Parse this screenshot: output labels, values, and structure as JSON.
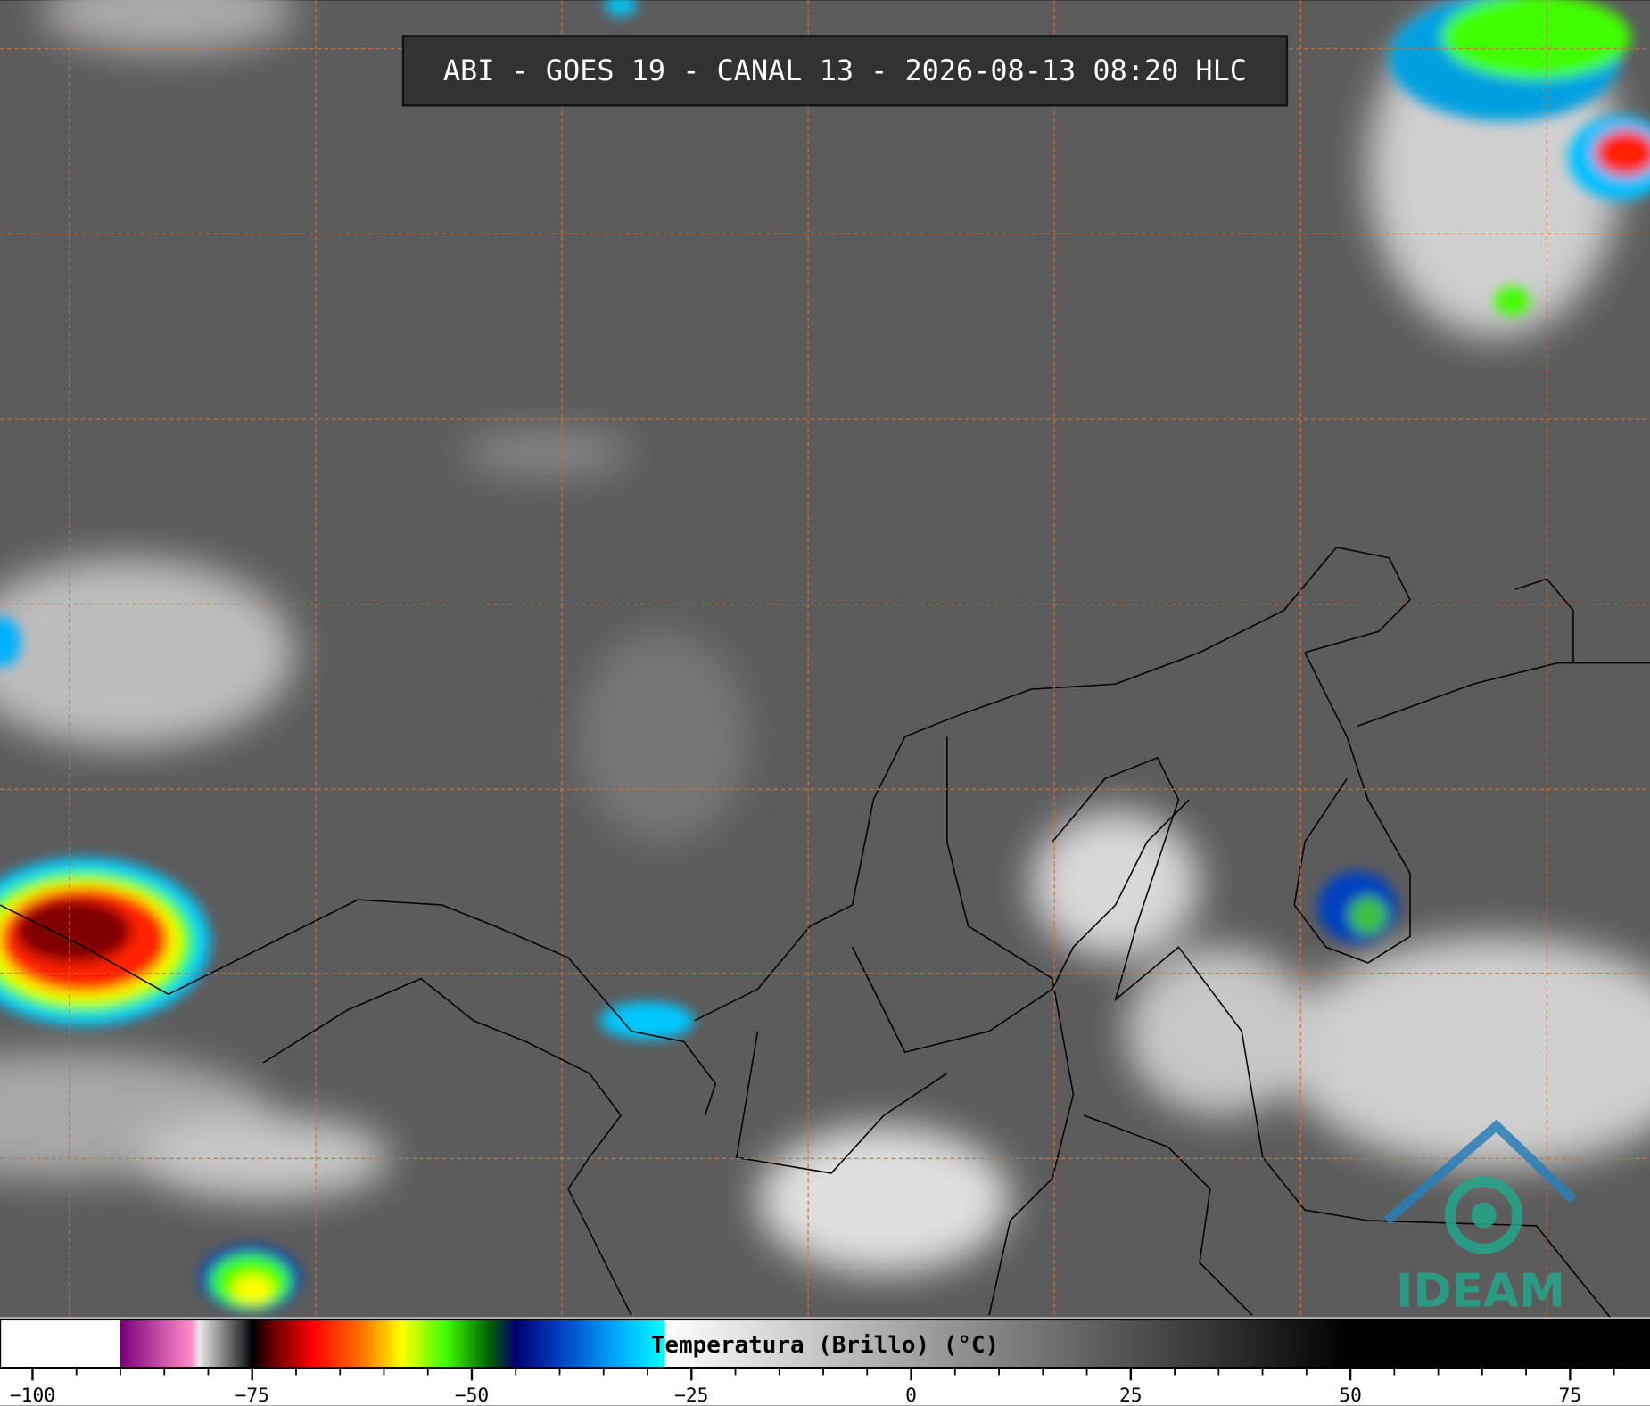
{
  "header": {
    "title": "ABI - GOES 19 - CANAL 13 - 2026-08-13 08:20 HLC"
  },
  "logo": {
    "text": "IDEAM"
  },
  "colorbar": {
    "label": "Temperatura (Brillo) (°C)",
    "xlim": [
      -103.7,
      84.1
    ],
    "ticks": [
      {
        "value": -100,
        "label": "−100"
      },
      {
        "value": -75,
        "label": "−75"
      },
      {
        "value": -50,
        "label": "−50"
      },
      {
        "value": -25,
        "label": "−25"
      },
      0,
      25,
      50,
      75
    ],
    "minor_ticks": [
      -95,
      -90,
      -85,
      -80,
      -70,
      -65,
      -60,
      -55,
      -45,
      -40,
      -35,
      -30,
      -20,
      -15,
      -10,
      -5,
      5,
      10,
      15,
      20,
      30,
      35,
      40,
      45,
      55,
      60,
      65,
      70,
      80
    ],
    "colormap": [
      {
        "value": -103.7,
        "color": "#ffffff"
      },
      {
        "value": -90,
        "color": "#ffffff"
      },
      {
        "value": -90,
        "color": "#7a007a"
      },
      {
        "value": -82,
        "color": "#ff88c8"
      },
      {
        "value": -81,
        "color": "#e8e8e8"
      },
      {
        "value": -76,
        "color": "#303030"
      },
      {
        "value": -75,
        "color": "#000000"
      },
      {
        "value": -73,
        "color": "#5a0000"
      },
      {
        "value": -68,
        "color": "#ff0000"
      },
      {
        "value": -62,
        "color": "#ff8000"
      },
      {
        "value": -58,
        "color": "#ffff00"
      },
      {
        "value": -53,
        "color": "#40ff00"
      },
      {
        "value": -48,
        "color": "#006000"
      },
      {
        "value": -45,
        "color": "#000070"
      },
      {
        "value": -40,
        "color": "#0040c0"
      },
      {
        "value": -33,
        "color": "#00b0ff"
      },
      {
        "value": -28,
        "color": "#00ffff"
      },
      {
        "value": -28,
        "color": "#ffffff"
      },
      {
        "value": 50,
        "color": "#000000"
      },
      {
        "value": 84.1,
        "color": "#000000"
      }
    ]
  }
}
